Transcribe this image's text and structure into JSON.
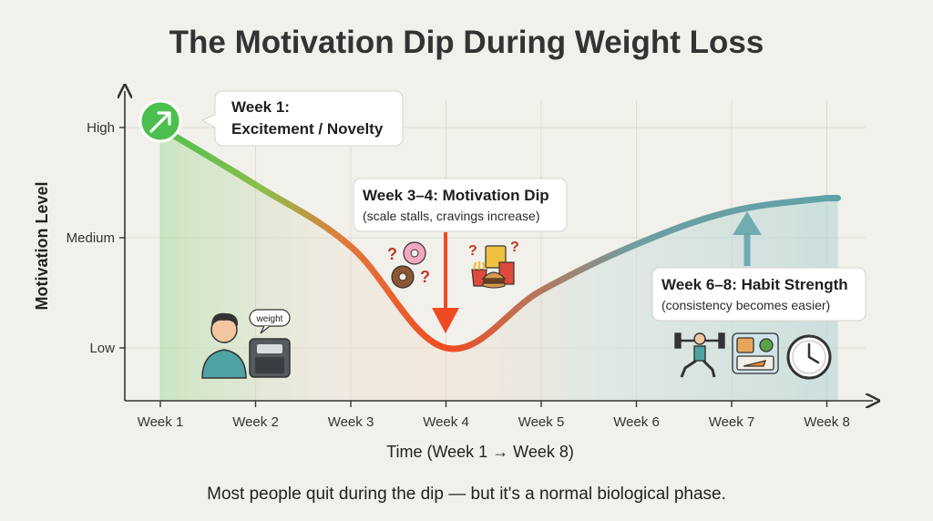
{
  "chart_data": {
    "type": "area",
    "title": "The Motivation Dip During Weight Loss",
    "xlabel": "Time (Week 1 → Week 8)",
    "ylabel": "Motivation Level",
    "categories": [
      "Week 1",
      "Week 2",
      "Week 3",
      "Week 4",
      "Week 5",
      "Week 6",
      "Week 7",
      "Week 8"
    ],
    "y_ticks": [
      "Low",
      "Medium",
      "High"
    ],
    "ylim": [
      0,
      1
    ],
    "series": [
      {
        "values": [
          1.0,
          0.74,
          0.46,
          0.0,
          0.26,
          0.47,
          0.62,
          0.68
        ]
      }
    ],
    "grid": true,
    "annotations": [
      {
        "title": "Week 1:",
        "subtitle": "Excitement / Novelty"
      },
      {
        "title": "Week 3–4: Motivation Dip",
        "subtitle": "(scale stalls, cravings increase)"
      },
      {
        "title": "Week 6–8: Habit Strength",
        "subtitle": "(consistency becomes easier)"
      }
    ],
    "footer": "Most people quit during the dip — but it's a normal biological phase."
  },
  "icons": {
    "start_marker": "trend-up-icon",
    "person": "person-icon",
    "scale": "bathroom-scale-icon",
    "scale_bubble_text": "weight",
    "donuts": "donut-icon",
    "fast_food": "fast-food-icon",
    "question_marks": [
      "?",
      "?",
      "?",
      "?"
    ],
    "workout": "lunge-workout-icon",
    "meal_prep": "meal-prep-icon",
    "clock": "clock-icon"
  },
  "colors": {
    "high": "#4cc04f",
    "dip": "#f04a22",
    "recovery": "#5ea2a8",
    "background": "#f2f0ea"
  }
}
